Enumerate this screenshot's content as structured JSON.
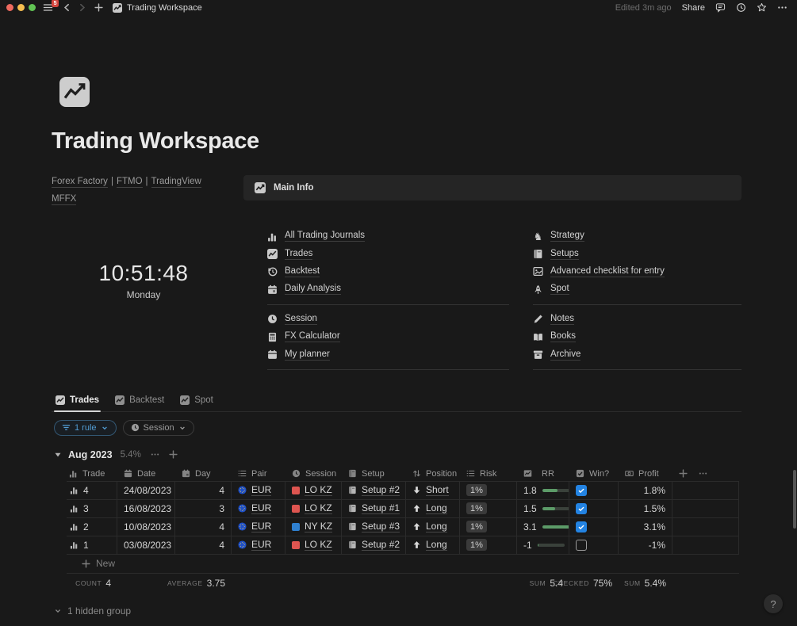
{
  "topbar": {
    "sidebar_badge": "5",
    "doc_title": "Trading Workspace",
    "edited": "Edited 3m ago",
    "share_label": "Share"
  },
  "page": {
    "title": "Trading Workspace",
    "links_row1": {
      "l1": "Forex Factory",
      "sep1": "|",
      "l2": "FTMO",
      "sep2": "|",
      "l3": "TradingView"
    },
    "links_row2": "MFFX",
    "clock": {
      "time": "10:51:48",
      "day": "Monday"
    },
    "callout_title": "Main Info"
  },
  "icons": {
    "knight": "♞"
  },
  "nav": {
    "left_group1": [
      "All Trading Journals",
      "Trades",
      "Backtest",
      "Daily Analysis"
    ],
    "left_group2": [
      "Session",
      "FX Calculator",
      "My planner"
    ],
    "right_group1": [
      "Strategy",
      "Setups",
      "Advanced checklist for entry",
      "Spot"
    ],
    "right_group2": [
      "Notes",
      "Books",
      "Archive"
    ]
  },
  "tabs": {
    "trades": "Trades",
    "backtest": "Backtest",
    "spot": "Spot"
  },
  "filters": {
    "rule": "1 rule",
    "session": "Session"
  },
  "group_header": {
    "name": "Aug 2023",
    "percent": "5.4%"
  },
  "table": {
    "headers": {
      "trade": "Trade",
      "date": "Date",
      "day": "Day",
      "pair": "Pair",
      "session": "Session",
      "setup": "Setup",
      "position": "Position",
      "risk": "Risk",
      "rr": "RR",
      "win": "Win?",
      "profit": "Profit"
    },
    "rows": [
      {
        "trade": "4",
        "date": "24/08/2023",
        "day": "4",
        "pair": "EUR",
        "session": "LO KZ",
        "session_color": "#de5550",
        "setup": "Setup #2",
        "position": "Short",
        "direction": "down",
        "risk": "1%",
        "rr": "1.8",
        "rr_pct": 58,
        "win": true,
        "profit": "1.8%"
      },
      {
        "trade": "3",
        "date": "16/08/2023",
        "day": "3",
        "pair": "EUR",
        "session": "LO KZ",
        "session_color": "#de5550",
        "setup": "Setup #1",
        "position": "Long",
        "direction": "up",
        "risk": "1%",
        "rr": "1.5",
        "rr_pct": 48,
        "win": true,
        "profit": "1.5%"
      },
      {
        "trade": "2",
        "date": "10/08/2023",
        "day": "4",
        "pair": "EUR",
        "session": "NY KZ",
        "session_color": "#2f80d0",
        "setup": "Setup #3",
        "position": "Long",
        "direction": "up",
        "risk": "1%",
        "rr": "3.1",
        "rr_pct": 100,
        "win": true,
        "profit": "3.1%"
      },
      {
        "trade": "1",
        "date": "03/08/2023",
        "day": "4",
        "pair": "EUR",
        "session": "LO KZ",
        "session_color": "#de5550",
        "setup": "Setup #2",
        "position": "Long",
        "direction": "up",
        "risk": "1%",
        "rr": "-1",
        "rr_pct": 2,
        "win": false,
        "profit": "-1%"
      }
    ],
    "new_label": "New",
    "summary": {
      "count_label": "COUNT",
      "count_value": "4",
      "average_label": "AVERAGE",
      "average_value": "3.75",
      "rr_sum_label": "SUM",
      "rr_sum_value": "5.4",
      "checked_label": "CHECKED",
      "checked_value": "75%",
      "profit_sum_label": "SUM",
      "profit_sum_value": "5.4%"
    }
  },
  "footer": {
    "hidden_group": "1 hidden group",
    "help_label": "?"
  },
  "colors": {
    "accent_blue": "#2383e2",
    "session_red": "#de5550",
    "session_blue": "#2f80d0",
    "rr_green": "#5c9b68",
    "badge_red": "#d5463f"
  }
}
